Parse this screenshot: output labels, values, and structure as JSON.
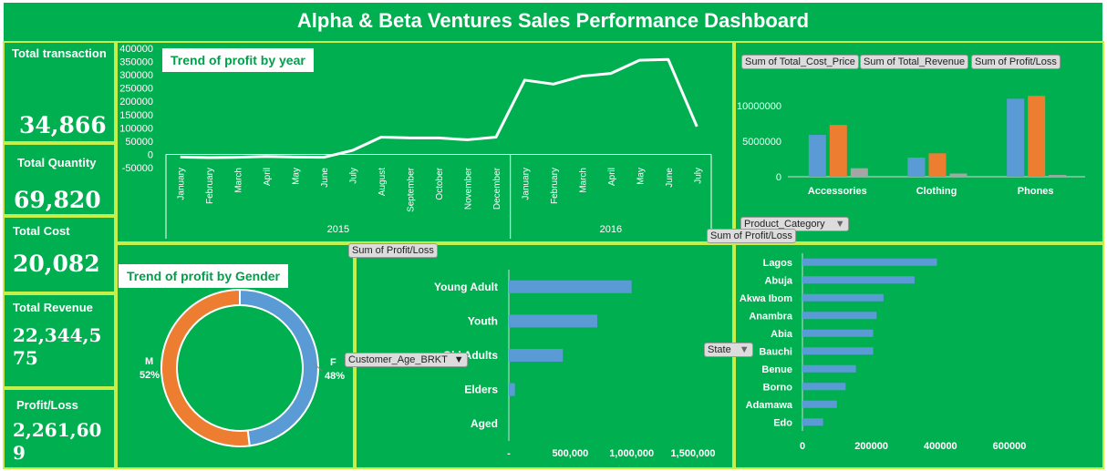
{
  "title": "Alpha & Beta Ventures Sales Performance Dashboard",
  "kpis": {
    "total_transaction": {
      "label": "Total transaction",
      "value": "34,866"
    },
    "total_quantity": {
      "label": "Total Quantity",
      "value": "69,820"
    },
    "total_cost": {
      "label": "Total Cost",
      "value": "20,082"
    },
    "total_revenue": {
      "label": "Total  Revenue",
      "value": "22,344,575"
    },
    "profit_loss": {
      "label": "Profit/Loss",
      "value": "2,261,609"
    }
  },
  "chips": {
    "sum_profit_loss_age": "Sum of Profit/Loss",
    "customer_age_filter": "Customer_Age_BRKT",
    "sum_profit_loss_state": "Sum of Profit/Loss",
    "state_filter": "State",
    "product_category_filter": "Product_Category",
    "filter_arrow": "▼"
  },
  "colors": {
    "background": "#00b050",
    "border": "#c5f04a",
    "blue": "#5b9bd5",
    "orange": "#ed7d31",
    "gray": "#a5a5a5",
    "line": "#ffffff"
  },
  "chart_data": [
    {
      "id": "profit_trend",
      "type": "line",
      "title": "Trend of profit by year",
      "y_ticks": [
        "400000",
        "350000",
        "300000",
        "250000",
        "200000",
        "150000",
        "100000",
        "50000",
        "0",
        "-50000"
      ],
      "ylim": [
        -50000,
        400000
      ],
      "years": [
        {
          "label": "2015",
          "months": [
            "January",
            "February",
            "March",
            "April",
            "May",
            "June",
            "July",
            "August",
            "September",
            "October",
            "November",
            "December"
          ]
        },
        {
          "label": "2016",
          "months": [
            "January",
            "February",
            "March",
            "April",
            "May",
            "June",
            "July"
          ]
        }
      ],
      "values": [
        -10000,
        -12000,
        -11000,
        -8000,
        -10000,
        -11000,
        15000,
        65000,
        62000,
        62000,
        55000,
        65000,
        280000,
        265000,
        295000,
        305000,
        355000,
        358000,
        105000
      ]
    },
    {
      "id": "category_bars",
      "type": "bar",
      "categories": [
        "Accessories",
        "Clothing",
        "Phones"
      ],
      "y_ticks": [
        "10000000",
        "5000000",
        "0"
      ],
      "ylim": [
        0,
        14000000
      ],
      "series": [
        {
          "name": "Sum of Total_Cost_Price",
          "values": [
            5900000,
            2700000,
            11000000
          ]
        },
        {
          "name": "Sum of Total_Revenue",
          "values": [
            7300000,
            3300000,
            11400000
          ]
        },
        {
          "name": "Sum of Profit/Loss",
          "values": [
            1200000,
            450000,
            250000
          ]
        }
      ]
    },
    {
      "id": "gender_donut",
      "type": "pie",
      "title": "Trend of profit by Gender",
      "slices": [
        {
          "label": "F",
          "percent": "48%",
          "value": 48
        },
        {
          "label": "M",
          "percent": "52%",
          "value": 52
        }
      ]
    },
    {
      "id": "age_bars",
      "type": "bar",
      "orientation": "horizontal",
      "categories": [
        "Young Adult",
        "Youth",
        "Old Adults",
        "Elders",
        "Aged"
      ],
      "values": [
        1000000,
        720000,
        440000,
        50000,
        0
      ],
      "x_ticks": [
        "-",
        "500,000",
        "1,000,000",
        "1,500,000"
      ],
      "xlim": [
        0,
        1500000
      ]
    },
    {
      "id": "state_bars",
      "type": "bar",
      "orientation": "horizontal",
      "categories": [
        "Lagos",
        "Abuja",
        "Akwa Ibom",
        "Anambra",
        "Abia",
        "Bauchi",
        "Benue",
        "Borno",
        "Adamawa",
        "Edo"
      ],
      "values": [
        390000,
        325000,
        235000,
        215000,
        205000,
        205000,
        155000,
        125000,
        100000,
        60000
      ],
      "x_ticks": [
        "0",
        "200000",
        "400000",
        "600000"
      ],
      "xlim": [
        0,
        600000
      ]
    }
  ]
}
